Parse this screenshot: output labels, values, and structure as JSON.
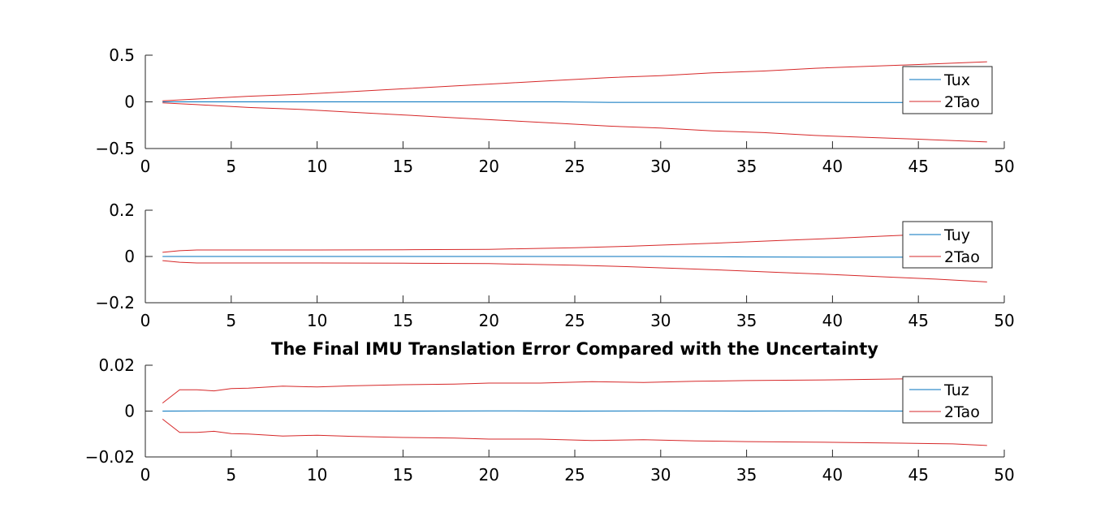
{
  "figure": {
    "background": "#ffffff",
    "axis_color": "#262626"
  },
  "chart_data": [
    {
      "type": "line",
      "title": "",
      "xlabel": "",
      "ylabel": "",
      "xlim": [
        0,
        50
      ],
      "ylim": [
        -0.5,
        0.5
      ],
      "x_ticks": [
        0,
        5,
        10,
        15,
        20,
        25,
        30,
        35,
        40,
        45,
        50
      ],
      "x_tick_labels": [
        "0",
        "5",
        "10",
        "15",
        "20",
        "25",
        "30",
        "35",
        "40",
        "45",
        "50"
      ],
      "y_ticks": [
        0.5,
        0,
        -0.5
      ],
      "y_tick_labels": [
        "0.5",
        "0",
        "−0.5"
      ],
      "grid": false,
      "legend_position": "top-right",
      "series": [
        {
          "name": "Tux",
          "color": "#0072bd",
          "x": [
            1,
            3,
            6,
            9,
            12,
            15,
            18,
            21,
            24,
            27,
            30,
            33,
            36,
            39,
            42,
            45,
            49
          ],
          "y": [
            0,
            0,
            0,
            0,
            0,
            0,
            0,
            0,
            0,
            -0.005,
            -0.005,
            -0.005,
            -0.005,
            -0.005,
            -0.006,
            -0.006,
            -0.006
          ]
        },
        {
          "name": "2Tao",
          "color": "#d62728",
          "x": [
            1,
            3,
            6,
            9,
            12,
            15,
            18,
            21,
            24,
            27,
            30,
            33,
            36,
            39,
            42,
            45,
            49
          ],
          "y": [
            0.01,
            0.03,
            0.06,
            0.08,
            0.11,
            0.14,
            0.17,
            0.2,
            0.23,
            0.26,
            0.28,
            0.31,
            0.33,
            0.36,
            0.38,
            0.4,
            0.43
          ]
        },
        {
          "color": "#d62728",
          "x": [
            1,
            3,
            6,
            9,
            12,
            15,
            18,
            21,
            24,
            27,
            30,
            33,
            36,
            39,
            42,
            45,
            49
          ],
          "y": [
            -0.01,
            -0.03,
            -0.06,
            -0.08,
            -0.11,
            -0.14,
            -0.17,
            -0.2,
            -0.23,
            -0.26,
            -0.28,
            -0.31,
            -0.33,
            -0.36,
            -0.38,
            -0.4,
            -0.43
          ]
        }
      ]
    },
    {
      "type": "line",
      "title": "",
      "xlabel": "",
      "ylabel": "",
      "xlim": [
        0,
        50
      ],
      "ylim": [
        -0.2,
        0.2
      ],
      "x_ticks": [
        0,
        5,
        10,
        15,
        20,
        25,
        30,
        35,
        40,
        45,
        50
      ],
      "x_tick_labels": [
        "0",
        "5",
        "10",
        "15",
        "20",
        "25",
        "30",
        "35",
        "40",
        "45",
        "50"
      ],
      "y_ticks": [
        0.2,
        0,
        -0.2
      ],
      "y_tick_labels": [
        "0.2",
        "0",
        "−0.2"
      ],
      "grid": false,
      "legend_position": "top-right",
      "series": [
        {
          "name": "Tuy",
          "color": "#0072bd",
          "x": [
            1,
            5,
            10,
            15,
            20,
            25,
            30,
            35,
            40,
            45,
            49
          ],
          "y": [
            0,
            0,
            0,
            0,
            0,
            0,
            0,
            -0.002,
            -0.003,
            -0.003,
            -0.003
          ]
        },
        {
          "name": "2Tao",
          "color": "#d62728",
          "x": [
            1,
            2,
            3,
            5,
            10,
            15,
            20,
            25,
            28,
            31,
            34,
            37,
            40,
            43,
            46,
            49
          ],
          "y": [
            0.018,
            0.025,
            0.028,
            0.028,
            0.028,
            0.029,
            0.031,
            0.038,
            0.044,
            0.052,
            0.06,
            0.069,
            0.078,
            0.088,
            0.098,
            0.11
          ]
        },
        {
          "color": "#d62728",
          "x": [
            1,
            2,
            3,
            5,
            10,
            15,
            20,
            25,
            28,
            31,
            34,
            37,
            40,
            43,
            46,
            49
          ],
          "y": [
            -0.018,
            -0.025,
            -0.028,
            -0.028,
            -0.028,
            -0.029,
            -0.031,
            -0.038,
            -0.044,
            -0.052,
            -0.06,
            -0.069,
            -0.078,
            -0.088,
            -0.098,
            -0.11
          ]
        }
      ]
    },
    {
      "type": "line",
      "title": "The Final IMU Translation Error Compared with the Uncertainty",
      "xlabel": "",
      "ylabel": "",
      "xlim": [
        0,
        50
      ],
      "ylim": [
        -0.02,
        0.02
      ],
      "x_ticks": [
        0,
        5,
        10,
        15,
        20,
        25,
        30,
        35,
        40,
        45,
        50
      ],
      "x_tick_labels": [
        "0",
        "5",
        "10",
        "15",
        "20",
        "25",
        "30",
        "35",
        "40",
        "45",
        "50"
      ],
      "y_ticks": [
        0.02,
        0,
        -0.02
      ],
      "y_tick_labels": [
        "0.02",
        "0",
        "−0.02"
      ],
      "grid": false,
      "legend_position": "top-right",
      "series": [
        {
          "name": "Tuz",
          "color": "#0072bd",
          "x": [
            1,
            5,
            10,
            15,
            20,
            25,
            30,
            35,
            40,
            45,
            49
          ],
          "y": [
            0,
            0.0001,
            0.0001,
            0,
            0.0001,
            0,
            0.0001,
            0,
            0.0001,
            0,
            0
          ]
        },
        {
          "name": "2Tao",
          "color": "#d62728",
          "x": [
            1,
            2,
            3,
            4,
            5,
            6,
            8,
            10,
            12,
            15,
            18,
            20,
            23,
            26,
            29,
            32,
            35,
            38,
            41,
            44,
            47,
            49
          ],
          "y": [
            0.0035,
            0.0093,
            0.0093,
            0.0088,
            0.0098,
            0.01,
            0.0109,
            0.0105,
            0.011,
            0.0115,
            0.0118,
            0.0122,
            0.0122,
            0.0128,
            0.0125,
            0.013,
            0.0133,
            0.0135,
            0.0137,
            0.014,
            0.0143,
            0.015
          ]
        },
        {
          "color": "#d62728",
          "x": [
            1,
            2,
            3,
            4,
            5,
            6,
            8,
            10,
            12,
            15,
            18,
            20,
            23,
            26,
            29,
            32,
            35,
            38,
            41,
            44,
            47,
            49
          ],
          "y": [
            -0.0035,
            -0.0093,
            -0.0093,
            -0.0088,
            -0.0098,
            -0.01,
            -0.0109,
            -0.0105,
            -0.011,
            -0.0115,
            -0.0118,
            -0.0122,
            -0.0122,
            -0.0128,
            -0.0125,
            -0.013,
            -0.0133,
            -0.0135,
            -0.0137,
            -0.014,
            -0.0143,
            -0.015
          ]
        }
      ]
    }
  ]
}
